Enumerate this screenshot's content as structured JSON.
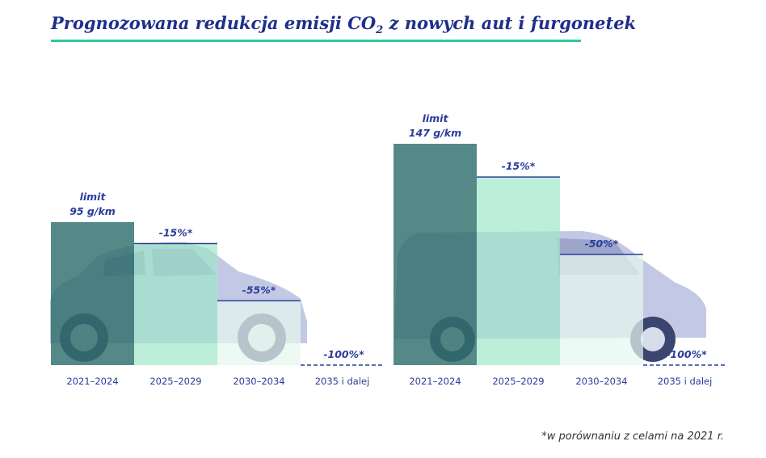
{
  "title": {
    "before": "Prognozowana redukcja emisji CO",
    "sub": "2",
    "after": " z nowych aut i furgonetek"
  },
  "footnote": "*w porównaniu z celami na 2021 r.",
  "colors": {
    "title": "#1e2f8c",
    "rule": "#2ec9a0",
    "bar_baseline": "#2f6f6c",
    "bar_period2": "#9ee6c8",
    "bar_period3": "#e6f7ee",
    "label": "#2a3d9a",
    "car_body": "#c3c9e4",
    "car_dark": "#6e7aa8"
  },
  "chart_data": [
    {
      "type": "bar",
      "vehicle": "car",
      "categories": [
        "2021–2024",
        "2025–2029",
        "2030–2034",
        "2035 i dalej"
      ],
      "values": [
        95,
        80.75,
        42.75,
        0
      ],
      "labels": [
        [
          "limit",
          "95 g/km"
        ],
        [
          "-15%*"
        ],
        [
          "-55%*"
        ],
        [
          "-100%*"
        ]
      ],
      "ylim": [
        0,
        147
      ]
    },
    {
      "type": "bar",
      "vehicle": "van",
      "categories": [
        "2021–2024",
        "2025–2029",
        "2030–2034",
        "2035 i dalej"
      ],
      "values": [
        147,
        124.95,
        73.5,
        0
      ],
      "labels": [
        [
          "limit",
          "147 g/km"
        ],
        [
          "-15%*"
        ],
        [
          "-50%*"
        ],
        [
          "-100%*"
        ]
      ],
      "ylim": [
        0,
        147
      ]
    }
  ]
}
